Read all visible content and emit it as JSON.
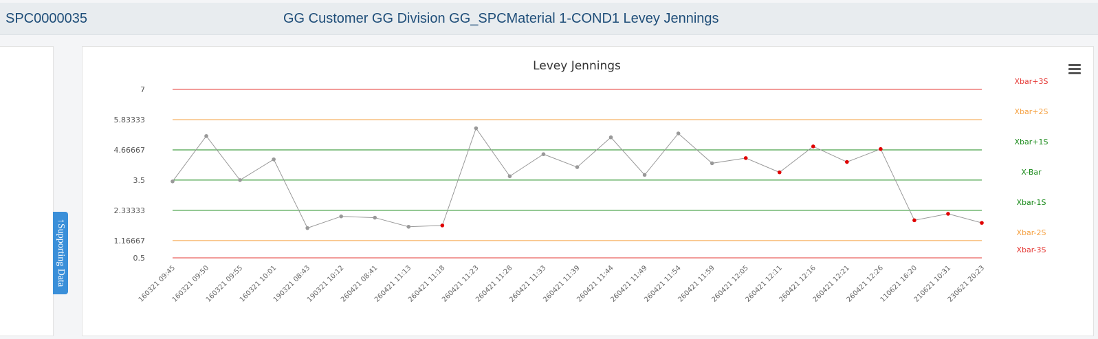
{
  "header": {
    "spc_id": "SPC0000035",
    "title": "GG Customer GG Division GG_SPCMaterial 1-COND1 Levey Jennings"
  },
  "supporting_tab": {
    "label": "Supporting Data",
    "arrow": "↑"
  },
  "colors": {
    "line": "#999999",
    "normal_point": "#999999",
    "alert_point": "#e00000",
    "red": "#e53935",
    "orange": "#f5a142",
    "green": "#1a8a1a"
  },
  "chart_data": {
    "type": "line",
    "title": "Levey Jennings",
    "ylim": [
      0.5,
      7
    ],
    "y_ticks": [
      "7",
      "5.83333",
      "4.66667",
      "3.5",
      "2.33333",
      "1.16667",
      "0.5"
    ],
    "y_tick_values": [
      7,
      5.83333,
      4.66667,
      3.5,
      2.33333,
      1.16667,
      0.5
    ],
    "control_lines": [
      {
        "label": "Xbar+3S",
        "value": 7,
        "color": "#e53935"
      },
      {
        "label": "Xbar+2S",
        "value": 5.83333,
        "color": "#f5a142"
      },
      {
        "label": "Xbar+1S",
        "value": 4.66667,
        "color": "#1a8a1a"
      },
      {
        "label": "X-Bar",
        "value": 3.5,
        "color": "#1a8a1a"
      },
      {
        "label": "Xbar-1S",
        "value": 2.33333,
        "color": "#1a8a1a"
      },
      {
        "label": "Xbar-2S",
        "value": 1.16667,
        "color": "#f5a142"
      },
      {
        "label": "Xbar-3S",
        "value": 0.5,
        "color": "#e53935"
      }
    ],
    "categories": [
      "160321 09:45",
      "160321 09:50",
      "160321 09:55",
      "160321 10:01",
      "190321 08:43",
      "190321 10:12",
      "260421 08:41",
      "260421 11:13",
      "260421 11:18",
      "260421 11:23",
      "260421 11:28",
      "260421 11:33",
      "260421 11:39",
      "260421 11:44",
      "260421 11:49",
      "260421 11:54",
      "260421 11:59",
      "260421 12:05",
      "260421 12:11",
      "260421 12:16",
      "260421 12:21",
      "260421 12:26",
      "110621 16:20",
      "210621 10:31",
      "230621 20:23"
    ],
    "series": [
      {
        "values": [
          3.45,
          5.2,
          3.5,
          4.3,
          1.65,
          2.1,
          2.05,
          1.7,
          1.75,
          5.5,
          3.65,
          4.5,
          4.0,
          5.15,
          3.7,
          5.3,
          4.15,
          4.35,
          3.8,
          4.8,
          4.2,
          4.7,
          1.95,
          2.2,
          1.85
        ],
        "alerts": [
          false,
          false,
          false,
          false,
          false,
          false,
          false,
          false,
          true,
          false,
          false,
          false,
          false,
          false,
          false,
          false,
          false,
          true,
          true,
          true,
          true,
          true,
          true,
          true,
          true
        ]
      }
    ]
  }
}
